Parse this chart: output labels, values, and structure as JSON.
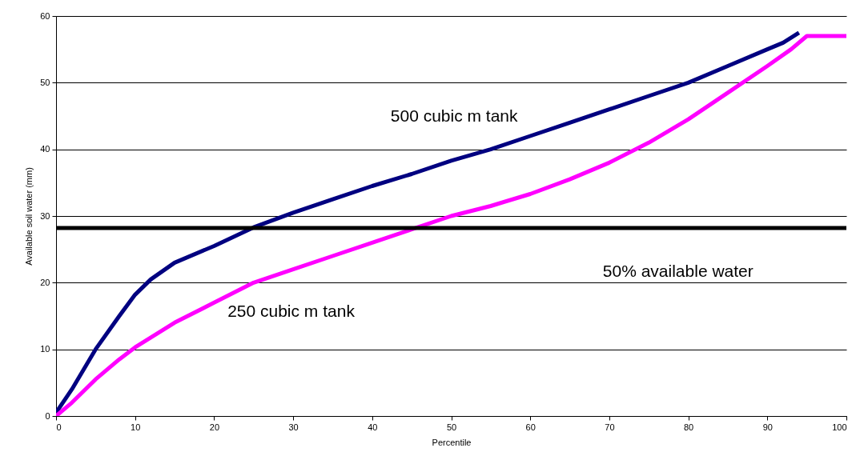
{
  "chart_data": {
    "type": "line",
    "xlabel": "Percentile",
    "ylabel": "Available soil water (mm)",
    "xlim": [
      0,
      100
    ],
    "ylim": [
      0,
      60
    ],
    "xticks": [
      0,
      10,
      20,
      30,
      40,
      50,
      60,
      70,
      80,
      90,
      100
    ],
    "yticks": [
      0,
      10,
      20,
      30,
      40,
      50,
      60
    ],
    "grid": "y",
    "legend": false,
    "marker": "none",
    "line_style": "solid",
    "series": [
      {
        "name": "500 cubic m tank",
        "color": "#000080",
        "x": [
          0,
          2,
          5,
          8,
          10,
          12,
          15,
          20,
          25,
          30,
          35,
          40,
          45,
          50,
          55,
          60,
          65,
          70,
          75,
          80,
          85,
          90,
          92,
          94
        ],
        "values": [
          0.5,
          4,
          10,
          15,
          18.2,
          20.5,
          23,
          25.5,
          28.3,
          30.5,
          32.5,
          34.5,
          36.3,
          38.3,
          40,
          42,
          44,
          46,
          48,
          50,
          52.5,
          55,
          56,
          57.5
        ]
      },
      {
        "name": "250 cubic m tank",
        "color": "#ff00ff",
        "x": [
          0,
          2,
          5,
          8,
          10,
          15,
          20,
          25,
          30,
          35,
          40,
          45,
          50,
          55,
          60,
          65,
          70,
          75,
          80,
          85,
          90,
          93,
          95,
          100
        ],
        "values": [
          0,
          2,
          5.5,
          8.5,
          10.3,
          14,
          17,
          20,
          22,
          24,
          26,
          28,
          30,
          31.5,
          33.3,
          35.5,
          38,
          41,
          44.5,
          48.5,
          52.5,
          55,
          57,
          57
        ]
      }
    ],
    "ref_lines": [
      {
        "axis": "y",
        "value": 28.2,
        "color": "#000000",
        "label": "50% available water"
      }
    ]
  }
}
